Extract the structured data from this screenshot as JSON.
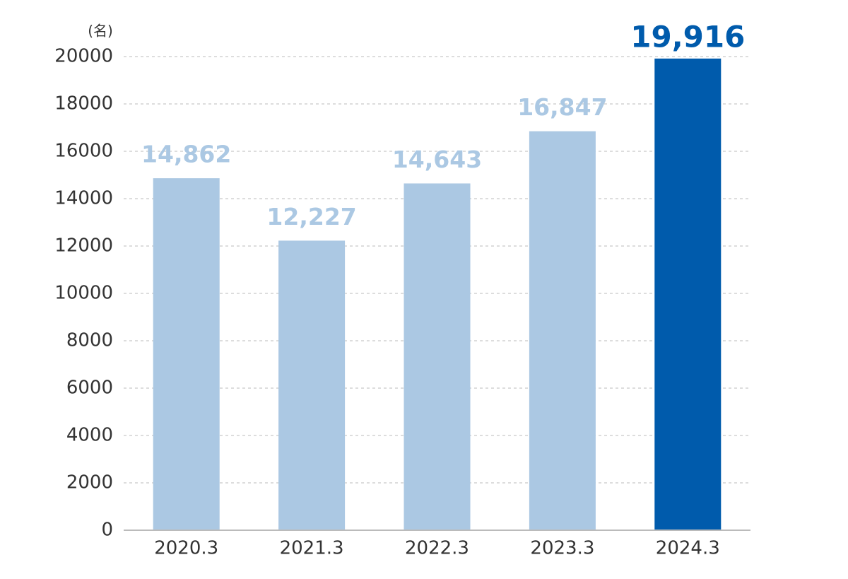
{
  "chart_data": {
    "type": "bar",
    "y_label": "(名)",
    "categories": [
      "2020.3",
      "2021.3",
      "2022.3",
      "2023.3",
      "2024.3"
    ],
    "values": [
      14862,
      12227,
      14643,
      16847,
      19916
    ],
    "value_labels": [
      "14,862",
      "12,227",
      "14,643",
      "16,847",
      "19,916"
    ],
    "colors": [
      "#abc8e3",
      "#abc8e3",
      "#abc8e3",
      "#abc8e3",
      "#005bac"
    ],
    "ylim": [
      0,
      20000
    ],
    "yticks": [
      0,
      2000,
      4000,
      6000,
      8000,
      10000,
      12000,
      14000,
      16000,
      18000,
      20000
    ],
    "grid": true
  }
}
